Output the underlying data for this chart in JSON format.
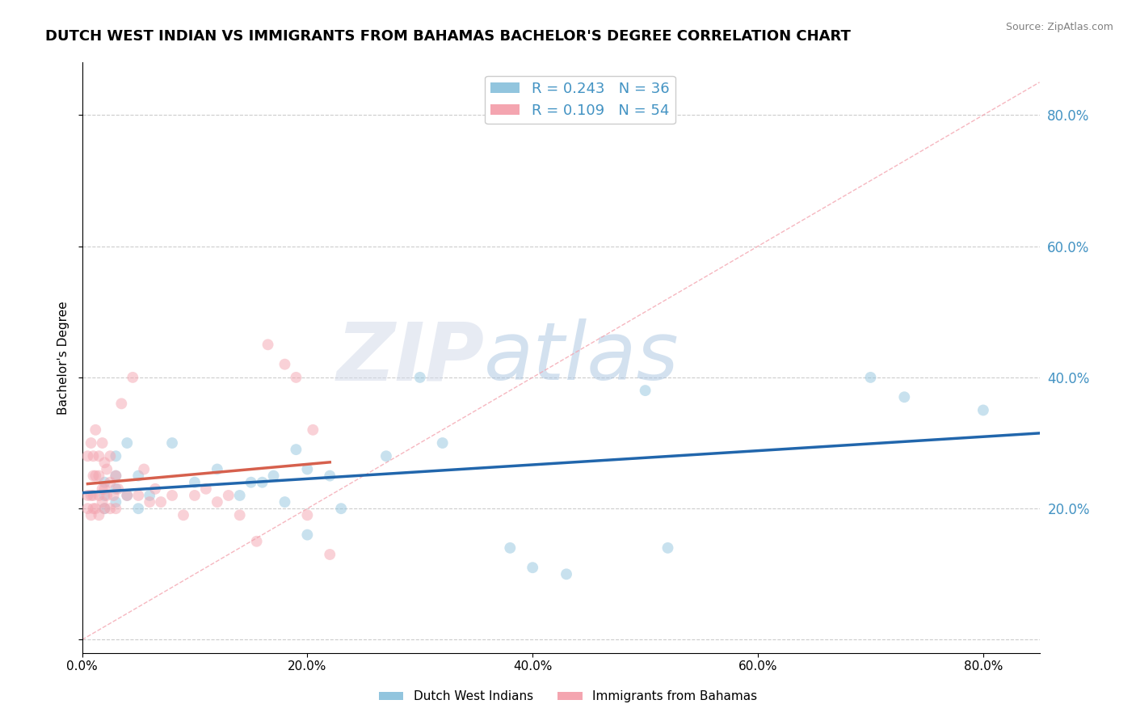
{
  "title": "DUTCH WEST INDIAN VS IMMIGRANTS FROM BAHAMAS BACHELOR'S DEGREE CORRELATION CHART",
  "source_text": "Source: ZipAtlas.com",
  "ylabel": "Bachelor's Degree",
  "xlim": [
    0.0,
    0.85
  ],
  "ylim": [
    -0.02,
    0.88
  ],
  "legend1_label": "R = 0.243   N = 36",
  "legend2_label": "R = 0.109   N = 54",
  "blue_color": "#92c5de",
  "pink_color": "#f4a5b0",
  "blue_line_color": "#2166ac",
  "pink_line_color": "#d6604d",
  "ref_line_color": "#f4a5b0",
  "watermark_zip": "ZIP",
  "watermark_atlas": "atlas",
  "grid_color": "#cccccc",
  "background_color": "#ffffff",
  "title_fontsize": 13,
  "axis_fontsize": 11,
  "tick_fontsize": 11,
  "right_tick_color": "#4393c3",
  "scatter_size": 100,
  "scatter_alpha": 0.5,
  "blue_scatter_x": [
    0.02,
    0.02,
    0.02,
    0.03,
    0.03,
    0.03,
    0.03,
    0.04,
    0.04,
    0.05,
    0.05,
    0.06,
    0.08,
    0.1,
    0.12,
    0.14,
    0.15,
    0.16,
    0.17,
    0.18,
    0.19,
    0.2,
    0.2,
    0.22,
    0.23,
    0.27,
    0.3,
    0.32,
    0.38,
    0.4,
    0.43,
    0.5,
    0.52,
    0.7,
    0.73,
    0.8
  ],
  "blue_scatter_y": [
    0.2,
    0.22,
    0.24,
    0.21,
    0.23,
    0.25,
    0.28,
    0.22,
    0.3,
    0.2,
    0.25,
    0.22,
    0.3,
    0.24,
    0.26,
    0.22,
    0.24,
    0.24,
    0.25,
    0.21,
    0.29,
    0.26,
    0.16,
    0.25,
    0.2,
    0.28,
    0.4,
    0.3,
    0.14,
    0.11,
    0.1,
    0.38,
    0.14,
    0.4,
    0.37,
    0.35
  ],
  "pink_scatter_x": [
    0.005,
    0.005,
    0.005,
    0.008,
    0.008,
    0.008,
    0.01,
    0.01,
    0.01,
    0.01,
    0.012,
    0.012,
    0.012,
    0.015,
    0.015,
    0.015,
    0.015,
    0.018,
    0.018,
    0.018,
    0.02,
    0.02,
    0.02,
    0.022,
    0.022,
    0.025,
    0.025,
    0.025,
    0.028,
    0.03,
    0.03,
    0.032,
    0.035,
    0.04,
    0.045,
    0.05,
    0.055,
    0.06,
    0.065,
    0.07,
    0.08,
    0.09,
    0.1,
    0.11,
    0.12,
    0.13,
    0.14,
    0.155,
    0.165,
    0.18,
    0.19,
    0.2,
    0.205,
    0.22
  ],
  "pink_scatter_y": [
    0.2,
    0.22,
    0.28,
    0.19,
    0.22,
    0.3,
    0.2,
    0.22,
    0.25,
    0.28,
    0.2,
    0.25,
    0.32,
    0.19,
    0.22,
    0.25,
    0.28,
    0.21,
    0.23,
    0.3,
    0.2,
    0.23,
    0.27,
    0.22,
    0.26,
    0.2,
    0.24,
    0.28,
    0.22,
    0.2,
    0.25,
    0.23,
    0.36,
    0.22,
    0.4,
    0.22,
    0.26,
    0.21,
    0.23,
    0.21,
    0.22,
    0.19,
    0.22,
    0.23,
    0.21,
    0.22,
    0.19,
    0.15,
    0.45,
    0.42,
    0.4,
    0.19,
    0.32,
    0.13
  ],
  "x_ticks": [
    0.0,
    0.2,
    0.4,
    0.6,
    0.8
  ],
  "x_tick_labels": [
    "0.0%",
    "20.0%",
    "40.0%",
    "60.0%",
    "80.0%"
  ],
  "y_ticks": [
    0.0,
    0.2,
    0.4,
    0.6,
    0.8
  ],
  "y_tick_right_labels": [
    "",
    "20.0%",
    "40.0%",
    "60.0%",
    "80.0%"
  ]
}
